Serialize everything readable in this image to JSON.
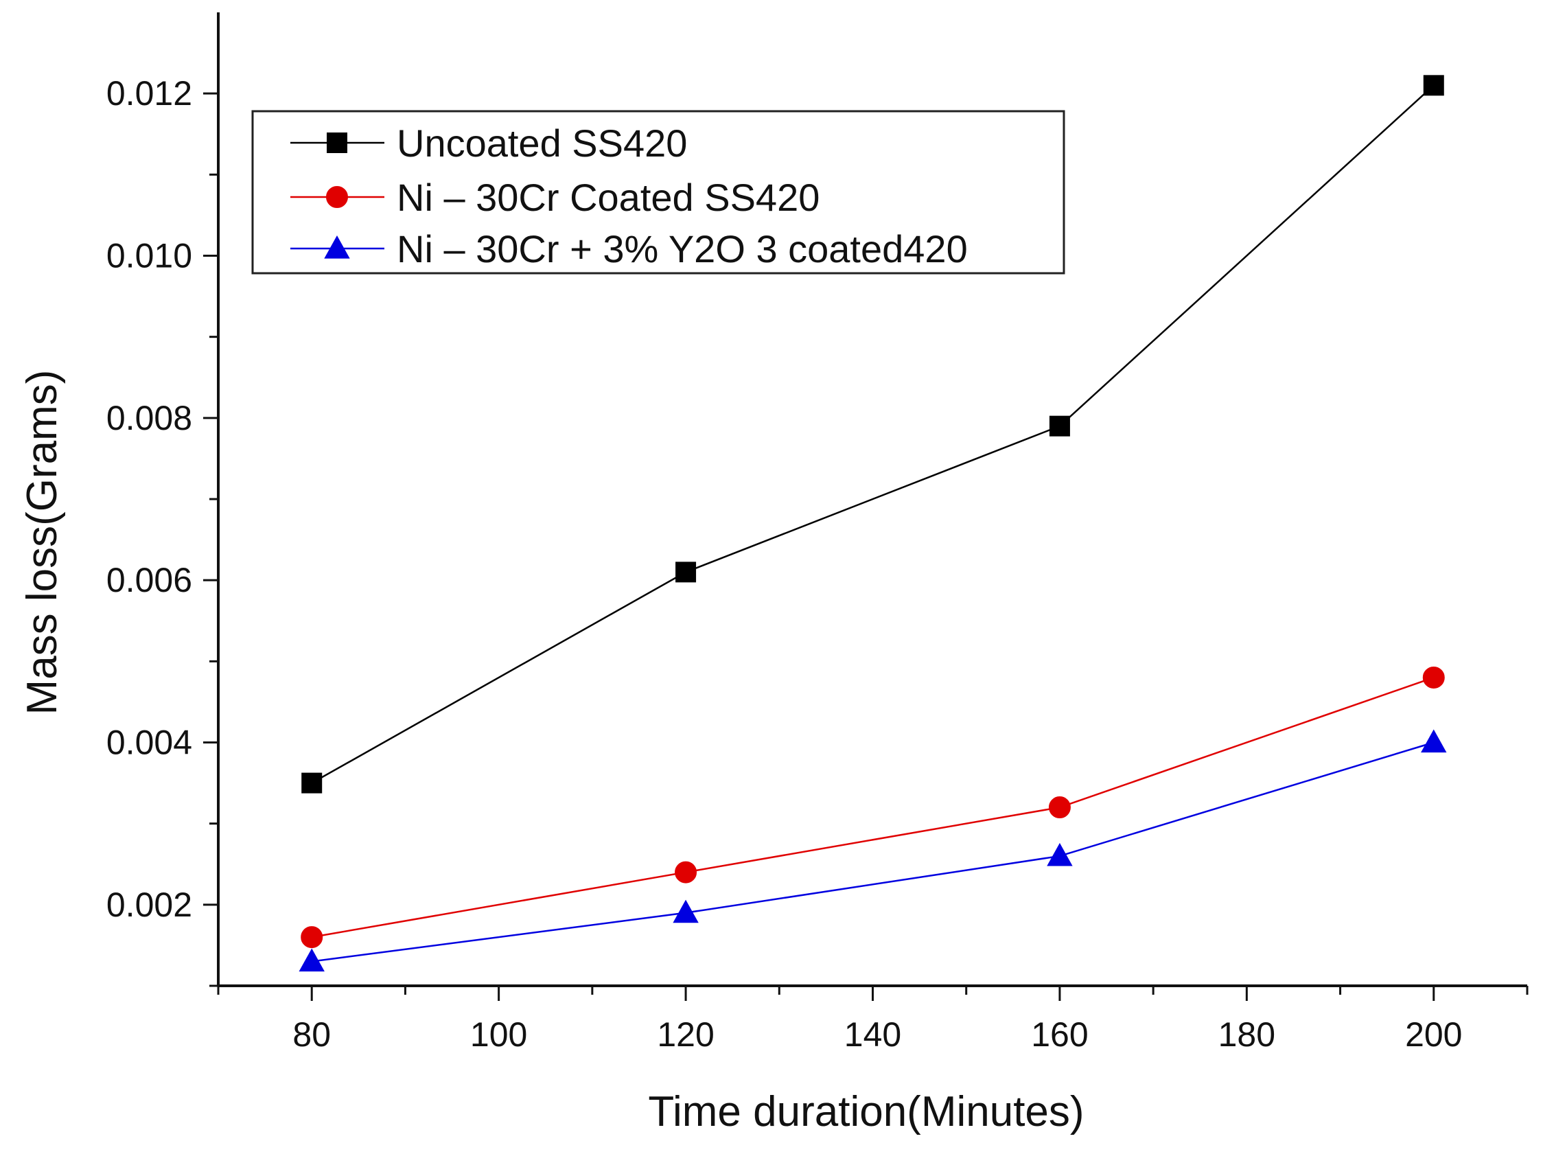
{
  "chart_data": {
    "type": "line",
    "title": "",
    "xlabel": "Time duration(Minutes)",
    "ylabel": "Mass loss(Grams)",
    "x": [
      80,
      120,
      160,
      200
    ],
    "xlim": [
      70,
      210
    ],
    "ylim": [
      0.001,
      0.013
    ],
    "xticks": [
      80,
      100,
      120,
      140,
      160,
      180,
      200
    ],
    "xtick_labels": [
      "80",
      "100",
      "120",
      "140",
      "160",
      "180",
      "200"
    ],
    "yticks": [
      0.002,
      0.004,
      0.006,
      0.008,
      0.01,
      0.012
    ],
    "ytick_labels": [
      "0.002",
      "0.004",
      "0.006",
      "0.008",
      "0.010",
      "0.012"
    ],
    "grid": false,
    "legend_position": "top-left",
    "series": [
      {
        "name": "Uncoated SS420",
        "values": [
          0.0035,
          0.0061,
          0.0079,
          0.0121
        ],
        "color": "#000000",
        "marker": "square"
      },
      {
        "name": "Ni – 30Cr  Coated SS420",
        "values": [
          0.0016,
          0.0024,
          0.0032,
          0.0048
        ],
        "color": "#e00000",
        "marker": "circle"
      },
      {
        "name": "Ni – 30Cr + 3% Y2O 3 coated420",
        "values": [
          0.0013,
          0.0019,
          0.0026,
          0.004
        ],
        "color": "#0000e0",
        "marker": "triangle"
      }
    ]
  }
}
